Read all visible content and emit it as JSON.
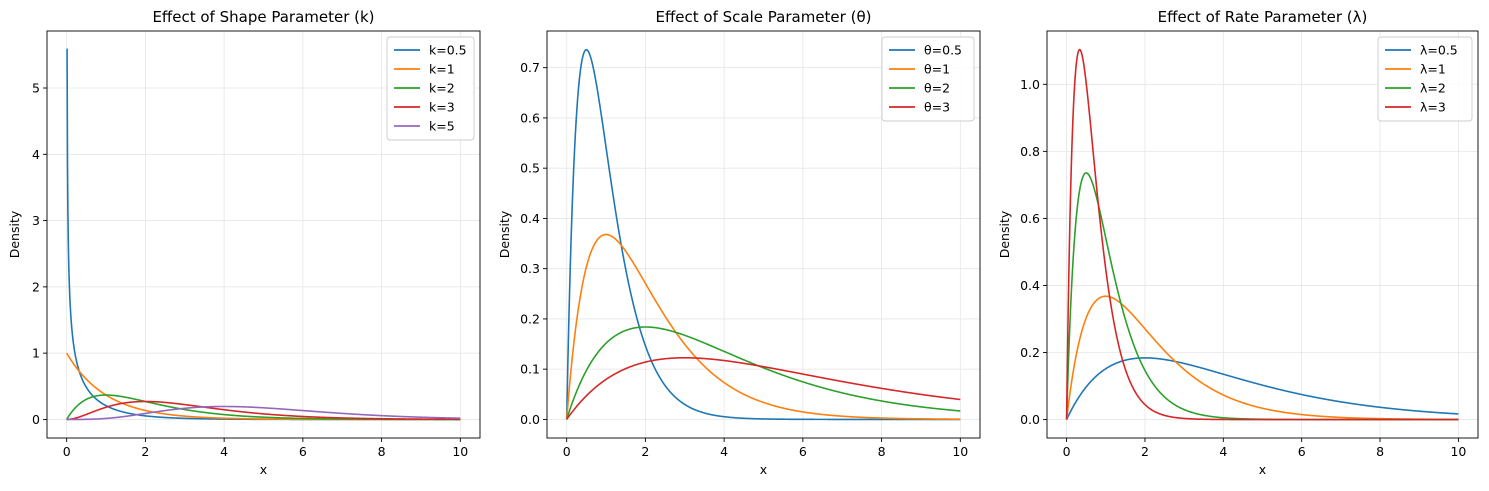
{
  "chart_data": [
    {
      "type": "line",
      "title": "Effect of Shape Parameter (k)",
      "xlabel": "x",
      "ylabel": "Density",
      "xlim": [
        -0.5,
        10.5
      ],
      "ylim": [
        -0.28,
        5.86
      ],
      "xticks": [
        0,
        2,
        4,
        6,
        8,
        10
      ],
      "yticks": [
        0,
        1,
        2,
        3,
        4,
        5
      ],
      "grid": true,
      "legend": "top-right",
      "x_range": [
        0,
        10
      ],
      "series": [
        {
          "name": "k=0.5",
          "shape": 0.5,
          "scale": 1,
          "color": "#1f77b4"
        },
        {
          "name": "k=1",
          "shape": 1,
          "scale": 1,
          "color": "#ff7f0e"
        },
        {
          "name": "k=2",
          "shape": 2,
          "scale": 1,
          "color": "#2ca02c"
        },
        {
          "name": "k=3",
          "shape": 3,
          "scale": 1,
          "color": "#d62728"
        },
        {
          "name": "k=5",
          "shape": 5,
          "scale": 1,
          "color": "#9467bd"
        }
      ]
    },
    {
      "type": "line",
      "title": "Effect of Scale Parameter (θ)",
      "xlabel": "x",
      "ylabel": "Density",
      "xlim": [
        -0.5,
        10.5
      ],
      "ylim": [
        -0.037,
        0.773
      ],
      "xticks": [
        0,
        2,
        4,
        6,
        8,
        10
      ],
      "yticks": [
        0.0,
        0.1,
        0.2,
        0.3,
        0.4,
        0.5,
        0.6,
        0.7
      ],
      "grid": true,
      "legend": "top-right",
      "x_range": [
        0,
        10
      ],
      "series": [
        {
          "name": "θ=0.5",
          "shape": 2,
          "scale": 0.5,
          "color": "#1f77b4"
        },
        {
          "name": "θ=1",
          "shape": 2,
          "scale": 1,
          "color": "#ff7f0e"
        },
        {
          "name": "θ=2",
          "shape": 2,
          "scale": 2,
          "color": "#2ca02c"
        },
        {
          "name": "θ=3",
          "shape": 2,
          "scale": 3,
          "color": "#d62728"
        }
      ]
    },
    {
      "type": "line",
      "title": "Effect of Rate Parameter (λ)",
      "xlabel": "x",
      "ylabel": "Density",
      "xlim": [
        -0.5,
        10.5
      ],
      "ylim": [
        -0.055,
        1.159
      ],
      "xticks": [
        0,
        2,
        4,
        6,
        8,
        10
      ],
      "yticks": [
        0.0,
        0.2,
        0.4,
        0.6,
        0.8,
        1.0
      ],
      "grid": true,
      "legend": "top-right",
      "x_range": [
        0,
        10
      ],
      "series": [
        {
          "name": "λ=0.5",
          "shape": 2,
          "scale": 2,
          "color": "#1f77b4"
        },
        {
          "name": "λ=1",
          "shape": 2,
          "scale": 1,
          "color": "#ff7f0e"
        },
        {
          "name": "λ=2",
          "shape": 2,
          "scale": 0.5,
          "color": "#2ca02c"
        },
        {
          "name": "λ=3",
          "shape": 2,
          "scale": 0.3333333,
          "color": "#d62728"
        }
      ]
    }
  ]
}
